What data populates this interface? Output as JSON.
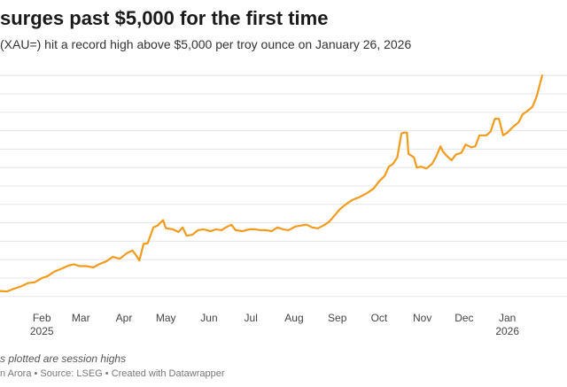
{
  "title": "surges past $5,000 for the first time",
  "subtitle": "(XAU=) hit a record high above $5,000 per troy ounce on January 26, 2026",
  "note": "s plotted are session highs",
  "credit": "n Arora • Source: LSEG • Created with Datawrapper",
  "colors": {
    "line": "#F29B1D",
    "grid": "#e5e5e5",
    "axis_text": "#444444"
  },
  "chart_data": {
    "type": "line",
    "title": "surges past $5,000 for the first time",
    "xlabel": "",
    "ylabel": "",
    "grid": true,
    "x_ticks": [
      {
        "date": "2025-02-01",
        "label": "Feb",
        "year": "2025"
      },
      {
        "date": "2025-03-01",
        "label": "Mar"
      },
      {
        "date": "2025-04-01",
        "label": "Apr"
      },
      {
        "date": "2025-05-01",
        "label": "May"
      },
      {
        "date": "2025-06-01",
        "label": "Jun"
      },
      {
        "date": "2025-07-01",
        "label": "Jul"
      },
      {
        "date": "2025-08-01",
        "label": "Aug"
      },
      {
        "date": "2025-09-01",
        "label": "Sep"
      },
      {
        "date": "2025-10-01",
        "label": "Oct"
      },
      {
        "date": "2025-11-01",
        "label": "Nov"
      },
      {
        "date": "2025-12-01",
        "label": "Dec"
      },
      {
        "date": "2026-01-01",
        "label": "Jan",
        "year": "2026"
      }
    ],
    "x_range": [
      "2025-01-02",
      "2026-01-26"
    ],
    "ylim": [
      2550,
      5050
    ],
    "y_gridlines": [
      2600,
      2800,
      3000,
      3200,
      3400,
      3600,
      3800,
      4000,
      4200,
      4400,
      4600,
      4800,
      5000
    ],
    "series": [
      {
        "points": [
          [
            "2025-01-02",
            2660
          ],
          [
            "2025-01-07",
            2655
          ],
          [
            "2025-01-12",
            2685
          ],
          [
            "2025-01-17",
            2710
          ],
          [
            "2025-01-22",
            2745
          ],
          [
            "2025-01-27",
            2755
          ],
          [
            "2025-02-01",
            2800
          ],
          [
            "2025-02-05",
            2820
          ],
          [
            "2025-02-10",
            2870
          ],
          [
            "2025-02-14",
            2895
          ],
          [
            "2025-02-20",
            2935
          ],
          [
            "2025-02-24",
            2950
          ],
          [
            "2025-02-28",
            2930
          ],
          [
            "2025-03-05",
            2930
          ],
          [
            "2025-03-10",
            2915
          ],
          [
            "2025-03-14",
            2950
          ],
          [
            "2025-03-19",
            2980
          ],
          [
            "2025-03-24",
            3030
          ],
          [
            "2025-03-29",
            3010
          ],
          [
            "2025-04-03",
            3070
          ],
          [
            "2025-04-07",
            3100
          ],
          [
            "2025-04-10",
            3040
          ],
          [
            "2025-04-12",
            2990
          ],
          [
            "2025-04-15",
            3170
          ],
          [
            "2025-04-18",
            3180
          ],
          [
            "2025-04-22",
            3350
          ],
          [
            "2025-04-25",
            3370
          ],
          [
            "2025-04-29",
            3430
          ],
          [
            "2025-05-01",
            3340
          ],
          [
            "2025-05-06",
            3330
          ],
          [
            "2025-05-10",
            3300
          ],
          [
            "2025-05-13",
            3350
          ],
          [
            "2025-05-16",
            3260
          ],
          [
            "2025-05-20",
            3270
          ],
          [
            "2025-05-24",
            3320
          ],
          [
            "2025-05-28",
            3330
          ],
          [
            "2025-06-02",
            3310
          ],
          [
            "2025-06-06",
            3330
          ],
          [
            "2025-06-10",
            3320
          ],
          [
            "2025-06-13",
            3350
          ],
          [
            "2025-06-17",
            3380
          ],
          [
            "2025-06-20",
            3320
          ],
          [
            "2025-06-25",
            3310
          ],
          [
            "2025-06-30",
            3330
          ],
          [
            "2025-07-04",
            3330
          ],
          [
            "2025-07-08",
            3320
          ],
          [
            "2025-07-12",
            3320
          ],
          [
            "2025-07-16",
            3310
          ],
          [
            "2025-07-20",
            3350
          ],
          [
            "2025-07-24",
            3330
          ],
          [
            "2025-07-28",
            3320
          ],
          [
            "2025-08-02",
            3360
          ],
          [
            "2025-08-06",
            3370
          ],
          [
            "2025-08-10",
            3380
          ],
          [
            "2025-08-14",
            3350
          ],
          [
            "2025-08-18",
            3340
          ],
          [
            "2025-08-22",
            3370
          ],
          [
            "2025-08-26",
            3410
          ],
          [
            "2025-08-30",
            3480
          ],
          [
            "2025-09-03",
            3550
          ],
          [
            "2025-09-07",
            3600
          ],
          [
            "2025-09-12",
            3650
          ],
          [
            "2025-09-17",
            3680
          ],
          [
            "2025-09-22",
            3720
          ],
          [
            "2025-09-27",
            3770
          ],
          [
            "2025-10-01",
            3850
          ],
          [
            "2025-10-05",
            3910
          ],
          [
            "2025-10-08",
            4010
          ],
          [
            "2025-10-11",
            4040
          ],
          [
            "2025-10-14",
            4110
          ],
          [
            "2025-10-17",
            4370
          ],
          [
            "2025-10-19",
            4380
          ],
          [
            "2025-10-21",
            4380
          ],
          [
            "2025-10-22",
            4150
          ],
          [
            "2025-10-26",
            4110
          ],
          [
            "2025-10-28",
            4000
          ],
          [
            "2025-10-31",
            4010
          ],
          [
            "2025-11-04",
            3990
          ],
          [
            "2025-11-08",
            4040
          ],
          [
            "2025-11-11",
            4120
          ],
          [
            "2025-11-14",
            4230
          ],
          [
            "2025-11-16",
            4170
          ],
          [
            "2025-11-19",
            4120
          ],
          [
            "2025-11-22",
            4080
          ],
          [
            "2025-11-25",
            4140
          ],
          [
            "2025-11-29",
            4160
          ],
          [
            "2025-12-02",
            4250
          ],
          [
            "2025-12-06",
            4220
          ],
          [
            "2025-12-09",
            4230
          ],
          [
            "2025-12-12",
            4350
          ],
          [
            "2025-12-17",
            4350
          ],
          [
            "2025-12-20",
            4390
          ],
          [
            "2025-12-23",
            4530
          ],
          [
            "2025-12-26",
            4530
          ],
          [
            "2025-12-29",
            4350
          ],
          [
            "2026-01-01",
            4380
          ],
          [
            "2026-01-05",
            4440
          ],
          [
            "2026-01-09",
            4490
          ],
          [
            "2026-01-12",
            4580
          ],
          [
            "2026-01-15",
            4610
          ],
          [
            "2026-01-19",
            4660
          ],
          [
            "2026-01-22",
            4770
          ],
          [
            "2026-01-26",
            5000
          ]
        ]
      }
    ]
  }
}
